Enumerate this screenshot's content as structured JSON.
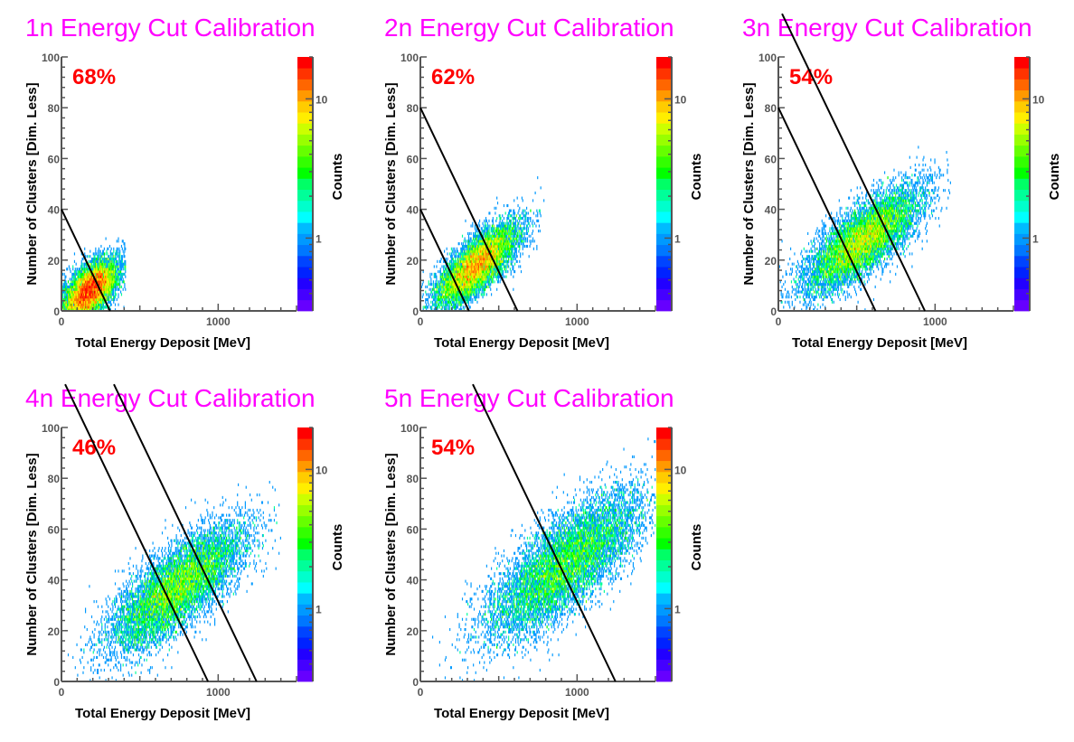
{
  "colors": {
    "title": "#ff00ff",
    "efficiency": "#ff0000",
    "axis": "#555555",
    "cut_line": "#000000",
    "palette": [
      "#6600ff",
      "#4400ff",
      "#2200ff",
      "#0022ff",
      "#0044ff",
      "#0077ff",
      "#0099ff",
      "#00bbff",
      "#00ffff",
      "#00ffcc",
      "#00ff99",
      "#00ff66",
      "#00ff00",
      "#33ff00",
      "#66ff00",
      "#99ff00",
      "#ccff00",
      "#ffee00",
      "#ffcc00",
      "#ff9900",
      "#ff6600",
      "#ff3300",
      "#ff0000"
    ]
  },
  "chart_data": [
    {
      "type": "heatmap",
      "title": "1n Energy Cut Calibration",
      "efficiency_label": "68%",
      "xlabel": "Total Energy Deposit [MeV]",
      "ylabel": "Number of Clusters [Dim. Less]",
      "zlabel": "Counts",
      "xlim": [
        0,
        1500
      ],
      "ylim": [
        0,
        100
      ],
      "xticks": [
        {
          "value": 0,
          "label": "0"
        },
        {
          "value": 1000,
          "label": "1000"
        }
      ],
      "yticks": [
        {
          "value": 0,
          "label": "0"
        },
        {
          "value": 20,
          "label": "20"
        },
        {
          "value": 40,
          "label": "40"
        },
        {
          "value": 60,
          "label": "60"
        },
        {
          "value": 80,
          "label": "80"
        },
        {
          "value": 100,
          "label": "100"
        }
      ],
      "zticks": [
        {
          "value": 1,
          "label": "1"
        },
        {
          "value": 10,
          "label": "10"
        }
      ],
      "zlim": [
        0.3,
        20
      ],
      "zscale": "log",
      "distribution": {
        "x_mean": 180,
        "y_mean": 8,
        "x_sd": 90,
        "y_sd": 6,
        "correlation": 0.6,
        "entries": 9000,
        "x_max": 410,
        "y_max": 32
      },
      "cut_lines": [
        {
          "x0": 0,
          "y0": 40,
          "x_intercept": 310
        }
      ]
    },
    {
      "type": "heatmap",
      "title": "2n Energy Cut Calibration",
      "efficiency_label": "62%",
      "xlabel": "Total Energy Deposit [MeV]",
      "ylabel": "Number of Clusters [Dim. Less]",
      "zlabel": "Counts",
      "xlim": [
        0,
        1500
      ],
      "ylim": [
        0,
        100
      ],
      "xticks": [
        {
          "value": 0,
          "label": "0"
        },
        {
          "value": 1000,
          "label": "1000"
        }
      ],
      "yticks": [
        {
          "value": 0,
          "label": "0"
        },
        {
          "value": 20,
          "label": "20"
        },
        {
          "value": 40,
          "label": "40"
        },
        {
          "value": 60,
          "label": "60"
        },
        {
          "value": 80,
          "label": "80"
        },
        {
          "value": 100,
          "label": "100"
        }
      ],
      "zticks": [
        {
          "value": 1,
          "label": "1"
        },
        {
          "value": 10,
          "label": "10"
        }
      ],
      "zlim": [
        0.3,
        20
      ],
      "zscale": "log",
      "distribution": {
        "x_mean": 360,
        "y_mean": 18,
        "x_sd": 130,
        "y_sd": 8,
        "correlation": 0.75,
        "entries": 9000,
        "x_max": 800,
        "y_max": 55
      },
      "cut_lines": [
        {
          "x0": 0,
          "y0": 40,
          "x_intercept": 310
        },
        {
          "x0": 0,
          "y0": 80,
          "x_intercept": 620
        }
      ]
    },
    {
      "type": "heatmap",
      "title": "3n Energy Cut Calibration",
      "efficiency_label": "54%",
      "xlabel": "Total Energy Deposit [MeV]",
      "ylabel": "Number of Clusters [Dim. Less]",
      "zlabel": "Counts",
      "xlim": [
        0,
        1500
      ],
      "ylim": [
        0,
        100
      ],
      "xticks": [
        {
          "value": 0,
          "label": "0"
        },
        {
          "value": 1000,
          "label": "1000"
        }
      ],
      "yticks": [
        {
          "value": 0,
          "label": "0"
        },
        {
          "value": 20,
          "label": "20"
        },
        {
          "value": 40,
          "label": "40"
        },
        {
          "value": 60,
          "label": "60"
        },
        {
          "value": 80,
          "label": "80"
        },
        {
          "value": 100,
          "label": "100"
        }
      ],
      "zticks": [
        {
          "value": 1,
          "label": "1"
        },
        {
          "value": 10,
          "label": "10"
        }
      ],
      "zlim": [
        0.3,
        20
      ],
      "zscale": "log",
      "distribution": {
        "x_mean": 540,
        "y_mean": 28,
        "x_sd": 180,
        "y_sd": 10,
        "correlation": 0.75,
        "entries": 9000,
        "x_max": 1100,
        "y_max": 70
      },
      "cut_lines": [
        {
          "x0": 0,
          "y0": 80,
          "x_intercept": 620
        },
        {
          "x0": 0,
          "y0": 120,
          "x_intercept": 935
        }
      ]
    },
    {
      "type": "heatmap",
      "title": "4n Energy Cut Calibration",
      "efficiency_label": "46%",
      "xlabel": "Total Energy Deposit [MeV]",
      "ylabel": "Number of Clusters [Dim. Less]",
      "zlabel": "Counts",
      "xlim": [
        0,
        1500
      ],
      "ylim": [
        0,
        100
      ],
      "xticks": [
        {
          "value": 0,
          "label": "0"
        },
        {
          "value": 1000,
          "label": "1000"
        }
      ],
      "yticks": [
        {
          "value": 0,
          "label": "0"
        },
        {
          "value": 20,
          "label": "20"
        },
        {
          "value": 40,
          "label": "40"
        },
        {
          "value": 60,
          "label": "60"
        },
        {
          "value": 80,
          "label": "80"
        },
        {
          "value": 100,
          "label": "100"
        }
      ],
      "zticks": [
        {
          "value": 1,
          "label": "1"
        },
        {
          "value": 10,
          "label": "10"
        }
      ],
      "zlim": [
        0.3,
        20
      ],
      "zscale": "log",
      "distribution": {
        "x_mean": 740,
        "y_mean": 37,
        "x_sd": 210,
        "y_sd": 12,
        "correlation": 0.75,
        "entries": 9000,
        "x_max": 1400,
        "y_max": 88
      },
      "cut_lines": [
        {
          "x0": 0,
          "y0": 120,
          "x_intercept": 935
        },
        {
          "x0": 0,
          "y0": 160,
          "x_intercept": 1245
        }
      ]
    },
    {
      "type": "heatmap",
      "title": "5n Energy Cut Calibration",
      "efficiency_label": "54%",
      "xlabel": "Total Energy Deposit [MeV]",
      "ylabel": "Number of Clusters [Dim. Less]",
      "zlabel": "Counts",
      "xlim": [
        0,
        1500
      ],
      "ylim": [
        0,
        100
      ],
      "xticks": [
        {
          "value": 0,
          "label": "0"
        },
        {
          "value": 1000,
          "label": "1000"
        }
      ],
      "yticks": [
        {
          "value": 0,
          "label": "0"
        },
        {
          "value": 20,
          "label": "20"
        },
        {
          "value": 40,
          "label": "40"
        },
        {
          "value": 60,
          "label": "60"
        },
        {
          "value": 80,
          "label": "80"
        },
        {
          "value": 100,
          "label": "100"
        }
      ],
      "zticks": [
        {
          "value": 1,
          "label": "1"
        },
        {
          "value": 10,
          "label": "10"
        }
      ],
      "zlim": [
        0.3,
        20
      ],
      "zscale": "log",
      "distribution": {
        "x_mean": 920,
        "y_mean": 46,
        "x_sd": 240,
        "y_sd": 14,
        "correlation": 0.75,
        "entries": 9000,
        "x_max": 1500,
        "y_max": 96
      },
      "cut_lines": [
        {
          "x0": 0,
          "y0": 160,
          "x_intercept": 1245
        }
      ]
    }
  ]
}
